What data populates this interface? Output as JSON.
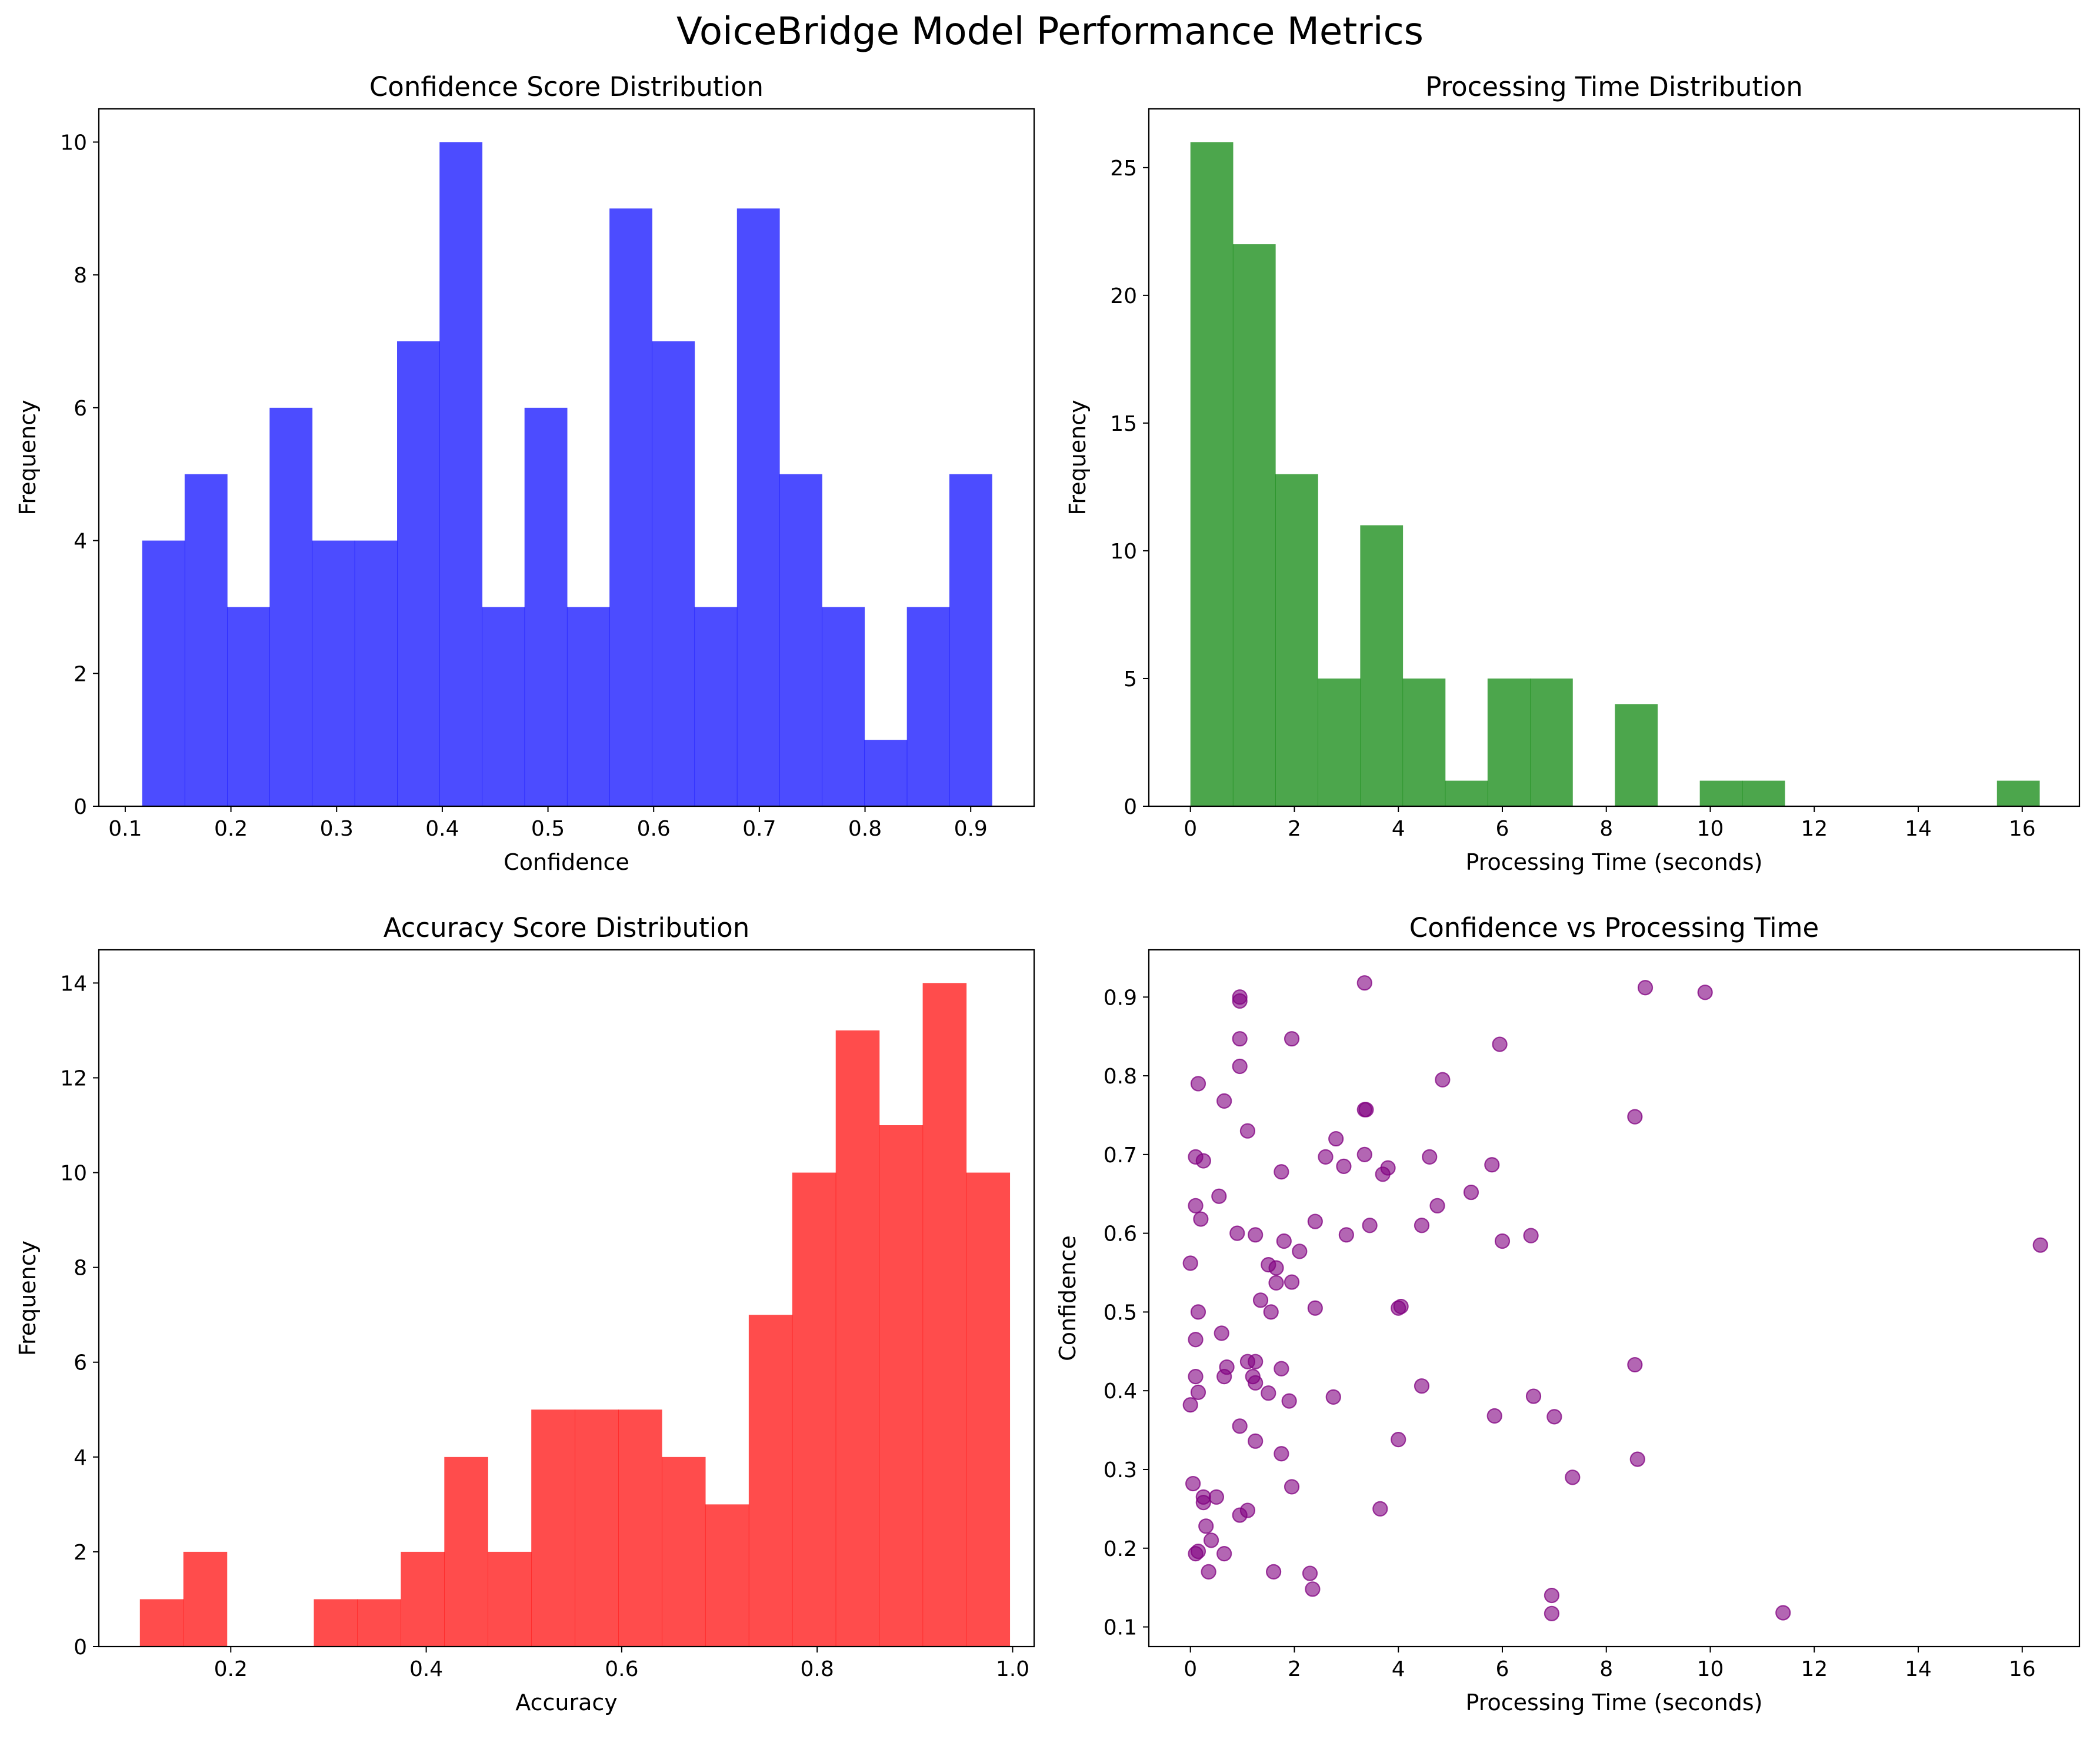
{
  "suptitle": "VoiceBridge Model Performance Metrics",
  "chart_data": [
    {
      "type": "histogram",
      "title": "Confidence Score Distribution",
      "xlabel": "Confidence",
      "ylabel": "Frequency",
      "color": "#0000ff",
      "xlim": [
        0.075,
        0.96
      ],
      "ylim": [
        0,
        10.5
      ],
      "xticks": [
        0.1,
        0.2,
        0.3,
        0.4,
        0.5,
        0.6,
        0.7,
        0.8,
        0.9
      ],
      "xtick_labels": [
        "0.1",
        "0.2",
        "0.3",
        "0.4",
        "0.5",
        "0.6",
        "0.7",
        "0.8",
        "0.9"
      ],
      "yticks": [
        0,
        2,
        4,
        6,
        8,
        10
      ],
      "ytick_labels": [
        "0",
        "2",
        "4",
        "6",
        "8",
        "10"
      ],
      "bin_edges": [
        0.116,
        0.1562,
        0.1964,
        0.2366,
        0.2768,
        0.317,
        0.3572,
        0.3974,
        0.4376,
        0.4778,
        0.518,
        0.5582,
        0.5984,
        0.6386,
        0.6788,
        0.719,
        0.7592,
        0.7994,
        0.8396,
        0.8798,
        0.92
      ],
      "counts": [
        4,
        5,
        3,
        6,
        4,
        4,
        7,
        10,
        3,
        6,
        3,
        9,
        7,
        3,
        9,
        5,
        3,
        1,
        3,
        5
      ]
    },
    {
      "type": "histogram",
      "title": "Processing Time Distribution",
      "xlabel": "Processing Time (seconds)",
      "ylabel": "Frequency",
      "color": "#008000",
      "xlim": [
        -0.8,
        17.1
      ],
      "ylim": [
        0,
        27.3
      ],
      "xticks": [
        0,
        2,
        4,
        6,
        8,
        10,
        12,
        14,
        16
      ],
      "xtick_labels": [
        "0",
        "2",
        "4",
        "6",
        "8",
        "10",
        "12",
        "14",
        "16"
      ],
      "yticks": [
        0,
        5,
        10,
        15,
        20,
        25
      ],
      "ytick_labels": [
        "0",
        "5",
        "10",
        "15",
        "20",
        "25"
      ],
      "bin_edges": [
        0.0,
        0.8165,
        1.633,
        2.4495,
        3.266,
        4.0825,
        4.899,
        5.7155,
        6.532,
        7.3485,
        8.165,
        8.9815,
        9.798,
        10.6145,
        11.431,
        12.2475,
        13.064,
        13.8805,
        14.697,
        15.5135,
        16.33
      ],
      "counts": [
        26,
        22,
        13,
        5,
        11,
        5,
        1,
        5,
        5,
        0,
        4,
        0,
        1,
        1,
        0,
        0,
        0,
        0,
        0,
        1
      ]
    },
    {
      "type": "histogram",
      "title": "Accuracy Score Distribution",
      "xlabel": "Accuracy",
      "ylabel": "Frequency",
      "color": "#ff0000",
      "xlim": [
        0.065,
        1.022
      ],
      "ylim": [
        0,
        14.7
      ],
      "xticks": [
        0.2,
        0.4,
        0.6,
        0.8,
        1.0
      ],
      "xtick_labels": [
        "0.2",
        "0.4",
        "0.6",
        "0.8",
        "1.0"
      ],
      "yticks": [
        0,
        2,
        4,
        6,
        8,
        10,
        12,
        14
      ],
      "ytick_labels": [
        "0",
        "2",
        "4",
        "6",
        "8",
        "10",
        "12",
        "14"
      ],
      "bin_edges": [
        0.107,
        0.1515,
        0.196,
        0.2405,
        0.285,
        0.3295,
        0.374,
        0.4185,
        0.463,
        0.5075,
        0.552,
        0.5965,
        0.641,
        0.6855,
        0.73,
        0.7745,
        0.819,
        0.8635,
        0.908,
        0.9525,
        0.997
      ],
      "counts": [
        1,
        2,
        0,
        0,
        1,
        1,
        2,
        4,
        2,
        5,
        5,
        5,
        4,
        3,
        7,
        10,
        13,
        11,
        14,
        10
      ]
    },
    {
      "type": "scatter",
      "title": "Confidence vs Processing Time",
      "xlabel": "Processing Time (seconds)",
      "ylabel": "Confidence",
      "color": "#800080",
      "xlim": [
        -0.8,
        17.1
      ],
      "ylim": [
        0.075,
        0.96
      ],
      "xticks": [
        0,
        2,
        4,
        6,
        8,
        10,
        12,
        14,
        16
      ],
      "xtick_labels": [
        "0",
        "2",
        "4",
        "6",
        "8",
        "10",
        "12",
        "14",
        "16"
      ],
      "yticks": [
        0.1,
        0.2,
        0.3,
        0.4,
        0.5,
        0.6,
        0.7,
        0.8,
        0.9
      ],
      "ytick_labels": [
        "0.1",
        "0.2",
        "0.3",
        "0.4",
        "0.5",
        "0.6",
        "0.7",
        "0.8",
        "0.9"
      ],
      "points": [
        [
          0.95,
          0.9
        ],
        [
          0.95,
          0.895
        ],
        [
          3.35,
          0.918
        ],
        [
          8.75,
          0.912
        ],
        [
          9.9,
          0.906
        ],
        [
          0.95,
          0.847
        ],
        [
          1.95,
          0.847
        ],
        [
          5.95,
          0.84
        ],
        [
          0.95,
          0.812
        ],
        [
          0.15,
          0.79
        ],
        [
          4.85,
          0.795
        ],
        [
          0.65,
          0.768
        ],
        [
          3.35,
          0.757
        ],
        [
          3.38,
          0.757
        ],
        [
          8.55,
          0.748
        ],
        [
          1.1,
          0.73
        ],
        [
          2.8,
          0.72
        ],
        [
          0.1,
          0.697
        ],
        [
          0.25,
          0.692
        ],
        [
          2.6,
          0.697
        ],
        [
          3.35,
          0.7
        ],
        [
          4.6,
          0.697
        ],
        [
          2.95,
          0.685
        ],
        [
          3.8,
          0.683
        ],
        [
          3.7,
          0.675
        ],
        [
          5.8,
          0.687
        ],
        [
          1.75,
          0.678
        ],
        [
          5.4,
          0.652
        ],
        [
          0.55,
          0.647
        ],
        [
          4.75,
          0.635
        ],
        [
          0.1,
          0.635
        ],
        [
          0.2,
          0.618
        ],
        [
          2.4,
          0.615
        ],
        [
          3.45,
          0.61
        ],
        [
          4.45,
          0.61
        ],
        [
          0.9,
          0.6
        ],
        [
          1.25,
          0.598
        ],
        [
          3.0,
          0.598
        ],
        [
          6.55,
          0.597
        ],
        [
          1.8,
          0.59
        ],
        [
          6.0,
          0.59
        ],
        [
          2.1,
          0.577
        ],
        [
          16.35,
          0.585
        ],
        [
          0.0,
          0.562
        ],
        [
          1.5,
          0.56
        ],
        [
          1.65,
          0.556
        ],
        [
          1.65,
          0.537
        ],
        [
          1.95,
          0.538
        ],
        [
          1.35,
          0.515
        ],
        [
          2.4,
          0.505
        ],
        [
          1.55,
          0.5
        ],
        [
          0.15,
          0.5
        ],
        [
          4.0,
          0.505
        ],
        [
          4.05,
          0.507
        ],
        [
          0.6,
          0.473
        ],
        [
          0.1,
          0.465
        ],
        [
          1.1,
          0.437
        ],
        [
          1.25,
          0.437
        ],
        [
          0.7,
          0.43
        ],
        [
          1.75,
          0.428
        ],
        [
          8.55,
          0.433
        ],
        [
          0.65,
          0.418
        ],
        [
          1.2,
          0.418
        ],
        [
          1.25,
          0.41
        ],
        [
          0.1,
          0.418
        ],
        [
          4.45,
          0.406
        ],
        [
          0.15,
          0.398
        ],
        [
          1.5,
          0.397
        ],
        [
          6.6,
          0.393
        ],
        [
          2.75,
          0.392
        ],
        [
          1.9,
          0.387
        ],
        [
          0.0,
          0.382
        ],
        [
          5.85,
          0.368
        ],
        [
          7.0,
          0.367
        ],
        [
          0.95,
          0.355
        ],
        [
          1.25,
          0.336
        ],
        [
          4.0,
          0.338
        ],
        [
          1.75,
          0.32
        ],
        [
          8.6,
          0.313
        ],
        [
          7.35,
          0.29
        ],
        [
          0.05,
          0.282
        ],
        [
          1.95,
          0.278
        ],
        [
          0.25,
          0.265
        ],
        [
          0.25,
          0.258
        ],
        [
          0.5,
          0.265
        ],
        [
          3.65,
          0.25
        ],
        [
          1.1,
          0.248
        ],
        [
          0.95,
          0.242
        ],
        [
          0.3,
          0.228
        ],
        [
          0.4,
          0.21
        ],
        [
          0.1,
          0.193
        ],
        [
          0.15,
          0.196
        ],
        [
          0.65,
          0.193
        ],
        [
          1.6,
          0.17
        ],
        [
          2.3,
          0.168
        ],
        [
          0.35,
          0.17
        ],
        [
          2.35,
          0.148
        ],
        [
          6.95,
          0.14
        ],
        [
          6.95,
          0.117
        ],
        [
          11.4,
          0.118
        ]
      ]
    }
  ]
}
